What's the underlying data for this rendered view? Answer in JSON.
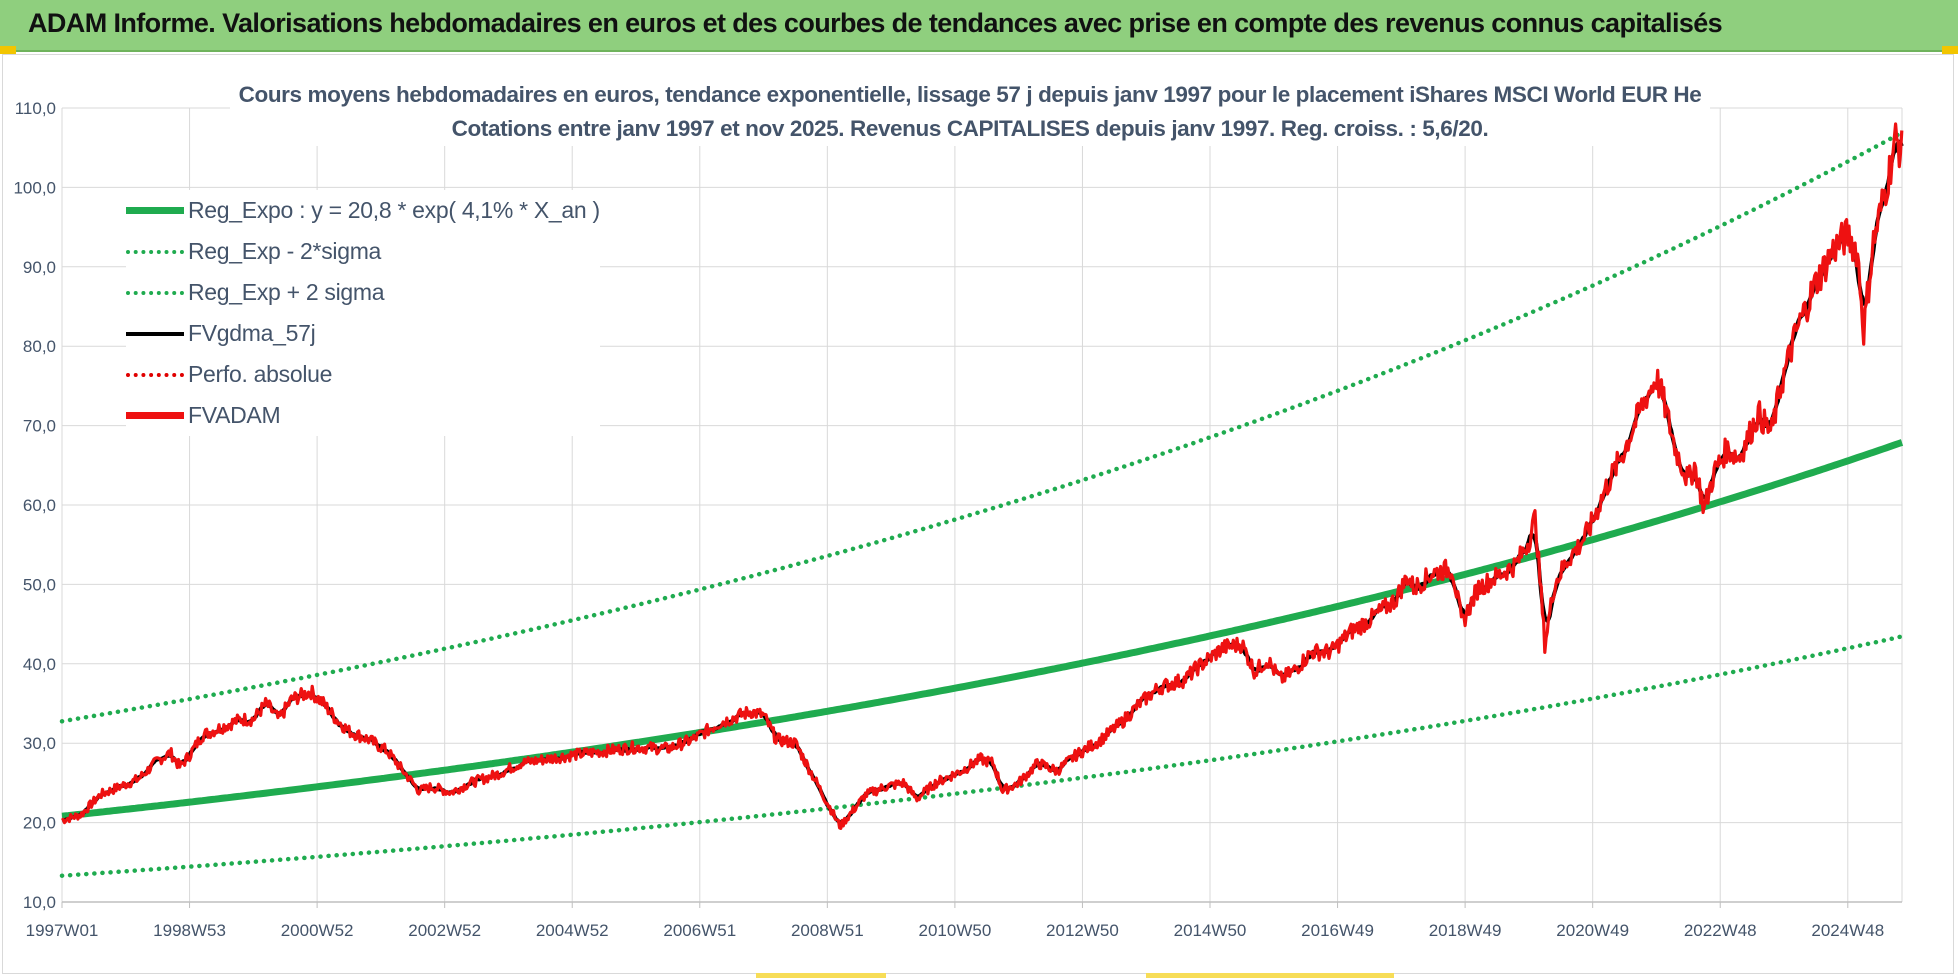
{
  "banner": {
    "title": "ADAM Informe. Valorisations hebdomadaires en euros et des courbes de tendances avec prise en compte des revenus connus capitalisés"
  },
  "colors": {
    "banner_bg": "#8fcf7e",
    "reg_expo": "#1fab4f",
    "band": "#1fab4f",
    "fvgdma": "#000000",
    "perfo": "#e00000",
    "fvadam": "#ee1111",
    "text": "#44546a",
    "grid": "#d9d9d9"
  },
  "chart_data": {
    "type": "line",
    "title": "Cours moyens hebdomadaires en euros, tendance exponentielle, lissage 57 j depuis janv 1997 pour le placement iShares MSCI World EUR He",
    "subtitle": "Cotations entre janv 1997 et nov 2025. Revenus CAPITALISES depuis janv 1997. Reg. croiss. : 5,6/20.",
    "xlabel": "",
    "ylabel": "",
    "ylim": [
      10,
      110
    ],
    "y_ticks": [
      "10,0",
      "20,0",
      "30,0",
      "40,0",
      "50,0",
      "60,0",
      "70,0",
      "80,0",
      "90,0",
      "100,0",
      "110,0"
    ],
    "x_range_years": [
      1997.0,
      2025.85
    ],
    "x_ticks": [
      {
        "label": "1997W01",
        "year": 1997.0
      },
      {
        "label": "1998W53",
        "year": 1999.0
      },
      {
        "label": "2000W52",
        "year": 2001.0
      },
      {
        "label": "2002W52",
        "year": 2003.0
      },
      {
        "label": "2004W52",
        "year": 2005.0
      },
      {
        "label": "2006W51",
        "year": 2007.0
      },
      {
        "label": "2008W51",
        "year": 2009.0
      },
      {
        "label": "2010W50",
        "year": 2011.0
      },
      {
        "label": "2012W50",
        "year": 2013.0
      },
      {
        "label": "2014W50",
        "year": 2015.0
      },
      {
        "label": "2016W49",
        "year": 2017.0
      },
      {
        "label": "2018W49",
        "year": 2019.0
      },
      {
        "label": "2020W49",
        "year": 2021.0
      },
      {
        "label": "2022W48",
        "year": 2023.0
      },
      {
        "label": "2024W48",
        "year": 2025.0
      }
    ],
    "grid": true,
    "legend_position": "top-left",
    "regression": {
      "a": 20.8,
      "rate": 0.041,
      "start_year": 1997.0,
      "sigma_low_factor": 0.64,
      "sigma_high_factor": 1.575
    },
    "series": [
      {
        "name": "Reg_Expo : y = 20,8 * exp( 4,1% *  X_an )",
        "style": "solid-thick",
        "color": "#1fab4f",
        "kind": "regression"
      },
      {
        "name": "Reg_Exp - 2*sigma",
        "style": "dotted",
        "color": "#1fab4f",
        "kind": "lower"
      },
      {
        "name": "Reg_Exp + 2 sigma",
        "style": "dotted",
        "color": "#1fab4f",
        "kind": "upper"
      },
      {
        "name": "FVgdma_57j",
        "style": "solid-mid",
        "color": "#000000",
        "kind": "smoothed"
      },
      {
        "name": "Perfo. absolue",
        "style": "dotted",
        "color": "#e00000",
        "kind": "none"
      },
      {
        "name": "FVADAM",
        "style": "solid-thick",
        "color": "#ee1111",
        "kind": "price"
      }
    ],
    "price_points": [
      [
        1997.0,
        20.3
      ],
      [
        1997.3,
        21.0
      ],
      [
        1997.6,
        23.5
      ],
      [
        1997.9,
        24.5
      ],
      [
        1998.2,
        25.5
      ],
      [
        1998.5,
        27.8
      ],
      [
        1998.7,
        28.8
      ],
      [
        1998.85,
        27.0
      ],
      [
        1999.0,
        28.5
      ],
      [
        1999.2,
        31.0
      ],
      [
        1999.5,
        32.0
      ],
      [
        1999.8,
        33.0
      ],
      [
        2000.0,
        33.0
      ],
      [
        2000.2,
        35.0
      ],
      [
        2000.4,
        33.0
      ],
      [
        2000.6,
        35.5
      ],
      [
        2000.9,
        36.5
      ],
      [
        2001.1,
        35.0
      ],
      [
        2001.3,
        33.0
      ],
      [
        2001.5,
        31.5
      ],
      [
        2001.8,
        30.5
      ],
      [
        2002.1,
        29.0
      ],
      [
        2002.4,
        26.0
      ],
      [
        2002.6,
        24.0
      ],
      [
        2002.8,
        24.5
      ],
      [
        2003.1,
        23.8
      ],
      [
        2003.4,
        25.0
      ],
      [
        2003.8,
        26.0
      ],
      [
        2004.2,
        27.5
      ],
      [
        2004.6,
        28.0
      ],
      [
        2005.0,
        28.5
      ],
      [
        2005.5,
        29.0
      ],
      [
        2006.0,
        29.5
      ],
      [
        2006.5,
        29.3
      ],
      [
        2006.9,
        30.5
      ],
      [
        2007.3,
        32.5
      ],
      [
        2007.8,
        34.0
      ],
      [
        2008.0,
        33.5
      ],
      [
        2008.2,
        30.5
      ],
      [
        2008.5,
        30.0
      ],
      [
        2008.8,
        25.5
      ],
      [
        2009.0,
        22.5
      ],
      [
        2009.2,
        19.5
      ],
      [
        2009.4,
        21.5
      ],
      [
        2009.6,
        23.5
      ],
      [
        2009.9,
        24.5
      ],
      [
        2010.2,
        25.0
      ],
      [
        2010.4,
        23.0
      ],
      [
        2010.7,
        25.0
      ],
      [
        2011.1,
        26.5
      ],
      [
        2011.4,
        28.0
      ],
      [
        2011.6,
        27.5
      ],
      [
        2011.75,
        24.0
      ],
      [
        2012.0,
        25.0
      ],
      [
        2012.3,
        27.5
      ],
      [
        2012.6,
        26.5
      ],
      [
        2012.9,
        28.5
      ],
      [
        2013.3,
        30.5
      ],
      [
        2013.6,
        32.5
      ],
      [
        2013.9,
        35.0
      ],
      [
        2014.2,
        37.0
      ],
      [
        2014.6,
        38.0
      ],
      [
        2014.8,
        39.5
      ],
      [
        2015.2,
        42.0
      ],
      [
        2015.5,
        42.5
      ],
      [
        2015.7,
        39.0
      ],
      [
        2015.9,
        40.5
      ],
      [
        2016.1,
        38.0
      ],
      [
        2016.3,
        39.0
      ],
      [
        2016.6,
        41.5
      ],
      [
        2016.9,
        41.5
      ],
      [
        2017.2,
        44.0
      ],
      [
        2017.5,
        45.5
      ],
      [
        2017.9,
        48.0
      ],
      [
        2018.1,
        51.0
      ],
      [
        2018.2,
        49.5
      ],
      [
        2018.5,
        51.5
      ],
      [
        2018.8,
        52.0
      ],
      [
        2018.95,
        45.0
      ],
      [
        2019.2,
        49.5
      ],
      [
        2019.5,
        51.0
      ],
      [
        2019.8,
        52.5
      ],
      [
        2020.0,
        55.5
      ],
      [
        2020.1,
        58.5
      ],
      [
        2020.25,
        42.5
      ],
      [
        2020.4,
        50.0
      ],
      [
        2020.6,
        53.0
      ],
      [
        2020.8,
        55.0
      ],
      [
        2020.95,
        57.0
      ],
      [
        2021.2,
        62.0
      ],
      [
        2021.5,
        67.0
      ],
      [
        2021.8,
        73.0
      ],
      [
        2022.0,
        76.0
      ],
      [
        2022.1,
        73.5
      ],
      [
        2022.3,
        67.0
      ],
      [
        2022.5,
        63.0
      ],
      [
        2022.6,
        65.0
      ],
      [
        2022.75,
        59.5
      ],
      [
        2022.9,
        64.0
      ],
      [
        2023.1,
        67.0
      ],
      [
        2023.3,
        66.0
      ],
      [
        2023.6,
        71.5
      ],
      [
        2023.8,
        69.0
      ],
      [
        2023.95,
        75.0
      ],
      [
        2024.2,
        82.0
      ],
      [
        2024.5,
        88.0
      ],
      [
        2024.8,
        92.5
      ],
      [
        2025.0,
        94.0
      ],
      [
        2025.15,
        92.0
      ],
      [
        2025.25,
        82.0
      ],
      [
        2025.4,
        93.0
      ],
      [
        2025.6,
        100.0
      ],
      [
        2025.75,
        106.0
      ],
      [
        2025.85,
        104.5
      ]
    ]
  }
}
